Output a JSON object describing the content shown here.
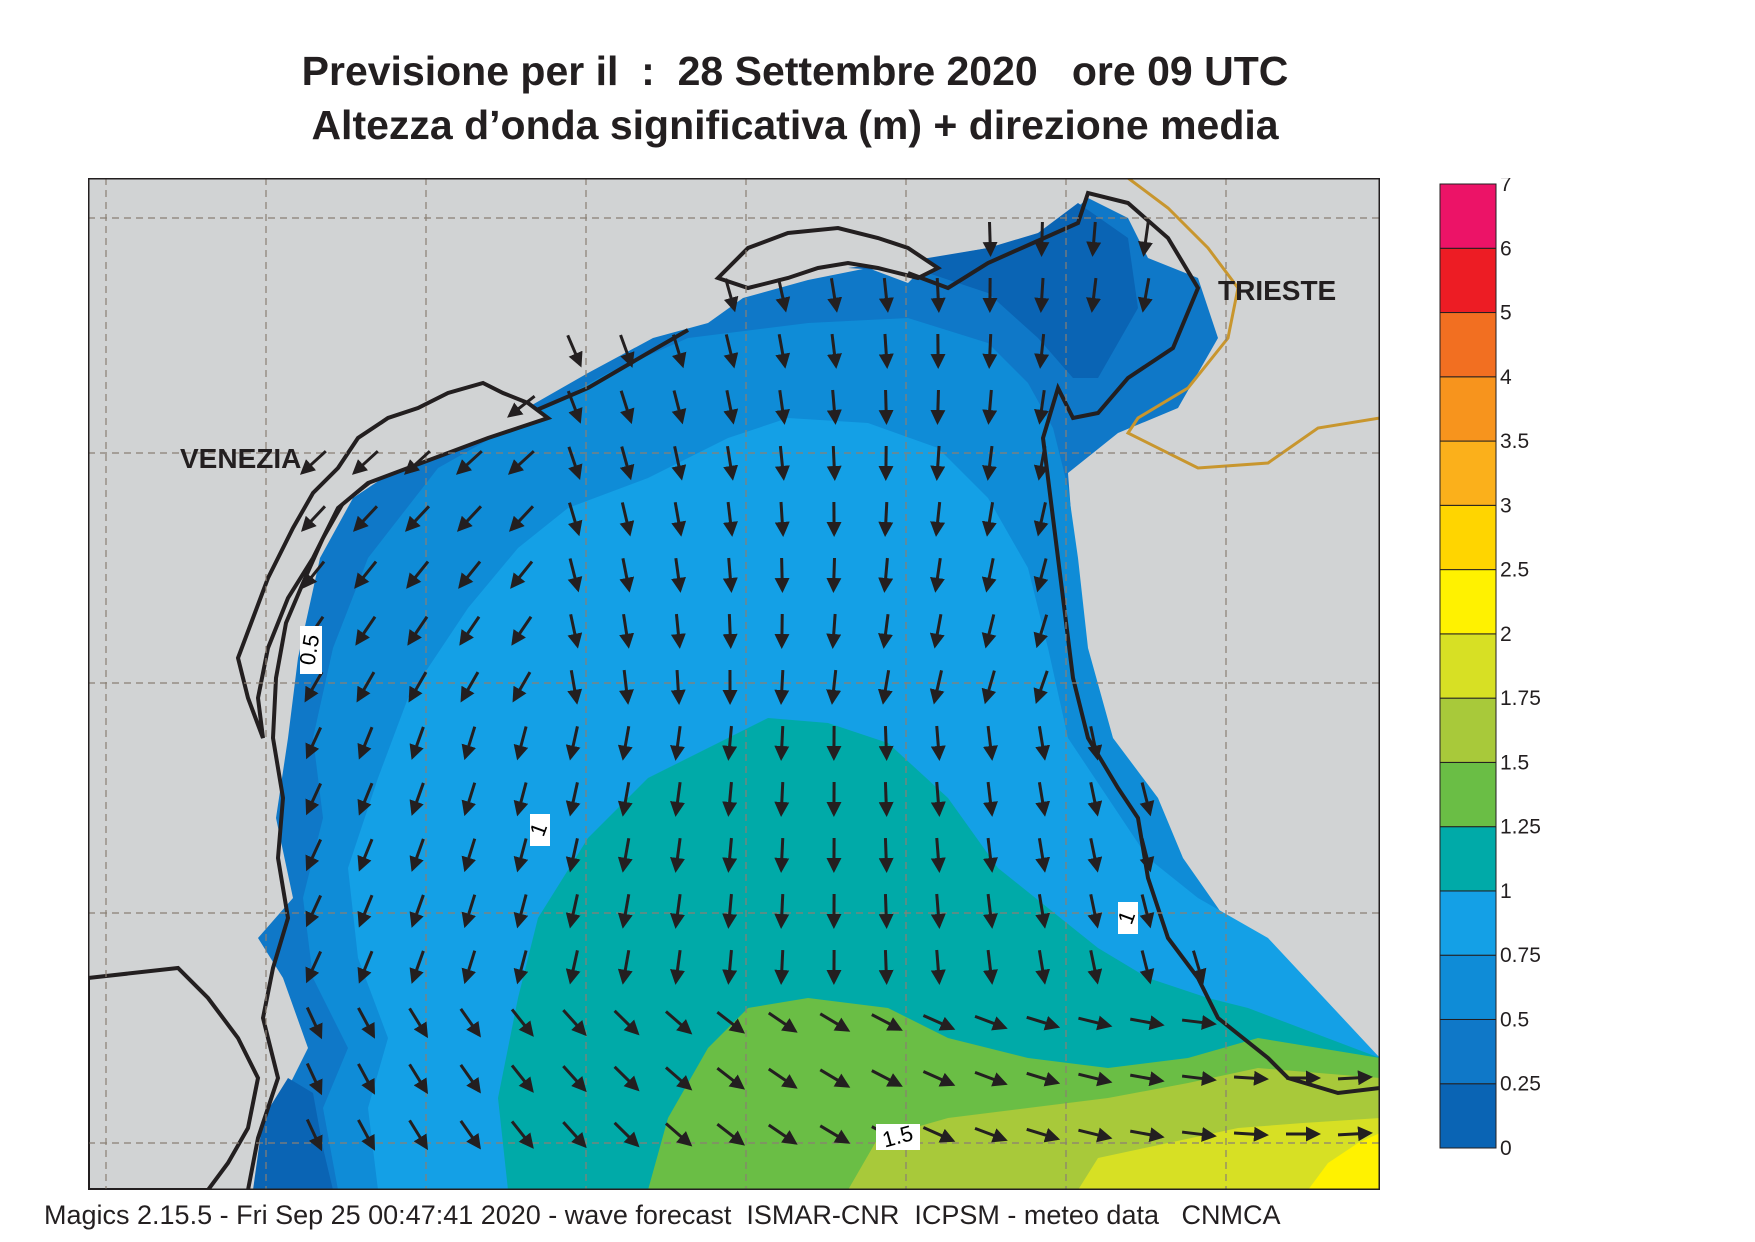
{
  "header": {
    "title_line1": "Previsione per il  :  28 Settembre 2020   ore 09 UTC",
    "title_line2": "Altezza d’onda significativa (m) + direzione media"
  },
  "map": {
    "cities": [
      "VENEZIA",
      "TRIESTE"
    ],
    "contour_labels": [
      "0.5",
      "1",
      "1",
      "1.5"
    ],
    "land_color": "#d1d3d4",
    "coast_color": "#231f20",
    "border_color": "#c8962e",
    "arrow_color": "#231f20",
    "grid": true
  },
  "legend": {
    "levels": [
      "0",
      "0.25",
      "0.5",
      "0.75",
      "1",
      "1.25",
      "1.5",
      "1.75",
      "2",
      "2.5",
      "3",
      "3.5",
      "4",
      "5",
      "6",
      "7"
    ],
    "colors": [
      "#0a64b4",
      "#0f78c8",
      "#0f8cd7",
      "#14a0e6",
      "#00aaa8",
      "#6abe45",
      "#a8c93a",
      "#d7e024",
      "#fff200",
      "#ffd500",
      "#fbb01b",
      "#f7941d",
      "#f26f21",
      "#ed1c24",
      "#ec1367"
    ]
  },
  "footer": {
    "text": "Magics 2.15.5 - Fri Sep 25 00:47:41 2020 - wave forecast  ISMAR-CNR  ICPSM - meteo data   CNMCA"
  }
}
